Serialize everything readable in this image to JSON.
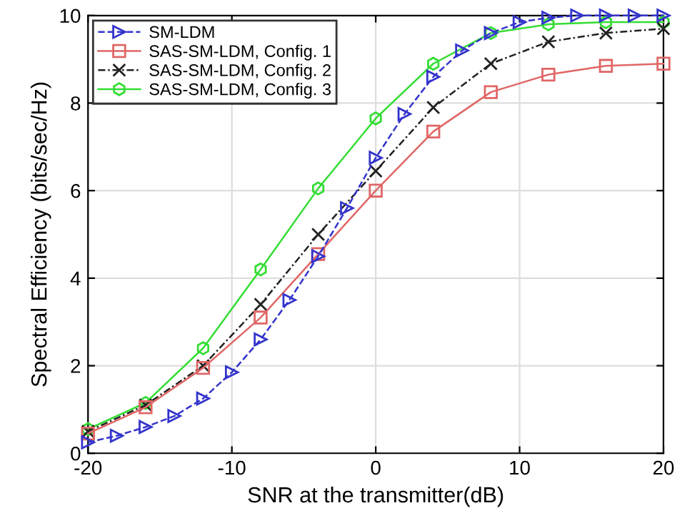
{
  "chart_data": {
    "type": "line",
    "xlabel": "SNR at the transmitter(dB)",
    "ylabel": "Spectral Efficiency (bits/sec/Hz)",
    "xlim": [
      -20,
      20
    ],
    "xticks": [
      -20,
      -10,
      0,
      10,
      20
    ],
    "ylim": [
      0,
      10
    ],
    "yticks": [
      0,
      2,
      4,
      6,
      8,
      10
    ],
    "grid": true,
    "legend": "top left",
    "series": [
      {
        "name": "SM-LDM",
        "color": "#3333cc",
        "marker": "triangle",
        "line_style": "dashed",
        "x": [
          -20,
          -18,
          -16,
          -14,
          -12,
          -10,
          -8,
          -6,
          -4,
          -2,
          0,
          2,
          4,
          6,
          8,
          10,
          12,
          14,
          16,
          18,
          20
        ],
        "values": [
          0.25,
          0.4,
          0.6,
          0.85,
          1.25,
          1.85,
          2.6,
          3.5,
          4.5,
          5.6,
          6.75,
          7.75,
          8.6,
          9.2,
          9.6,
          9.85,
          9.95,
          10,
          10,
          10,
          10
        ]
      },
      {
        "name": "SAS-SM-LDM, Config. 1",
        "color": "#e06666",
        "marker": "square",
        "line_style": "solid",
        "x": [
          -20,
          -16,
          -12,
          -8,
          -4,
          0,
          4,
          8,
          12,
          16,
          20
        ],
        "values": [
          0.45,
          1.05,
          1.95,
          3.1,
          4.55,
          6.0,
          7.35,
          8.25,
          8.65,
          8.85,
          8.9
        ]
      },
      {
        "name": "SAS-SM-LDM, Config. 2",
        "color": "#222222",
        "marker": "cross",
        "line_style": "dotted",
        "x": [
          -20,
          -16,
          -12,
          -8,
          -4,
          0,
          4,
          8,
          12,
          16,
          20
        ],
        "values": [
          0.5,
          1.1,
          2.0,
          3.4,
          5.0,
          6.45,
          7.9,
          8.9,
          9.4,
          9.6,
          9.7
        ]
      },
      {
        "name": "SAS-SM-LDM, Config. 3",
        "color": "#33dd33",
        "marker": "star",
        "line_style": "solid",
        "x": [
          -20,
          -16,
          -12,
          -8,
          -4,
          0,
          4,
          8,
          12,
          16,
          20
        ],
        "values": [
          0.55,
          1.15,
          2.4,
          4.2,
          6.05,
          7.65,
          8.9,
          9.6,
          9.8,
          9.85,
          9.85
        ]
      }
    ]
  }
}
